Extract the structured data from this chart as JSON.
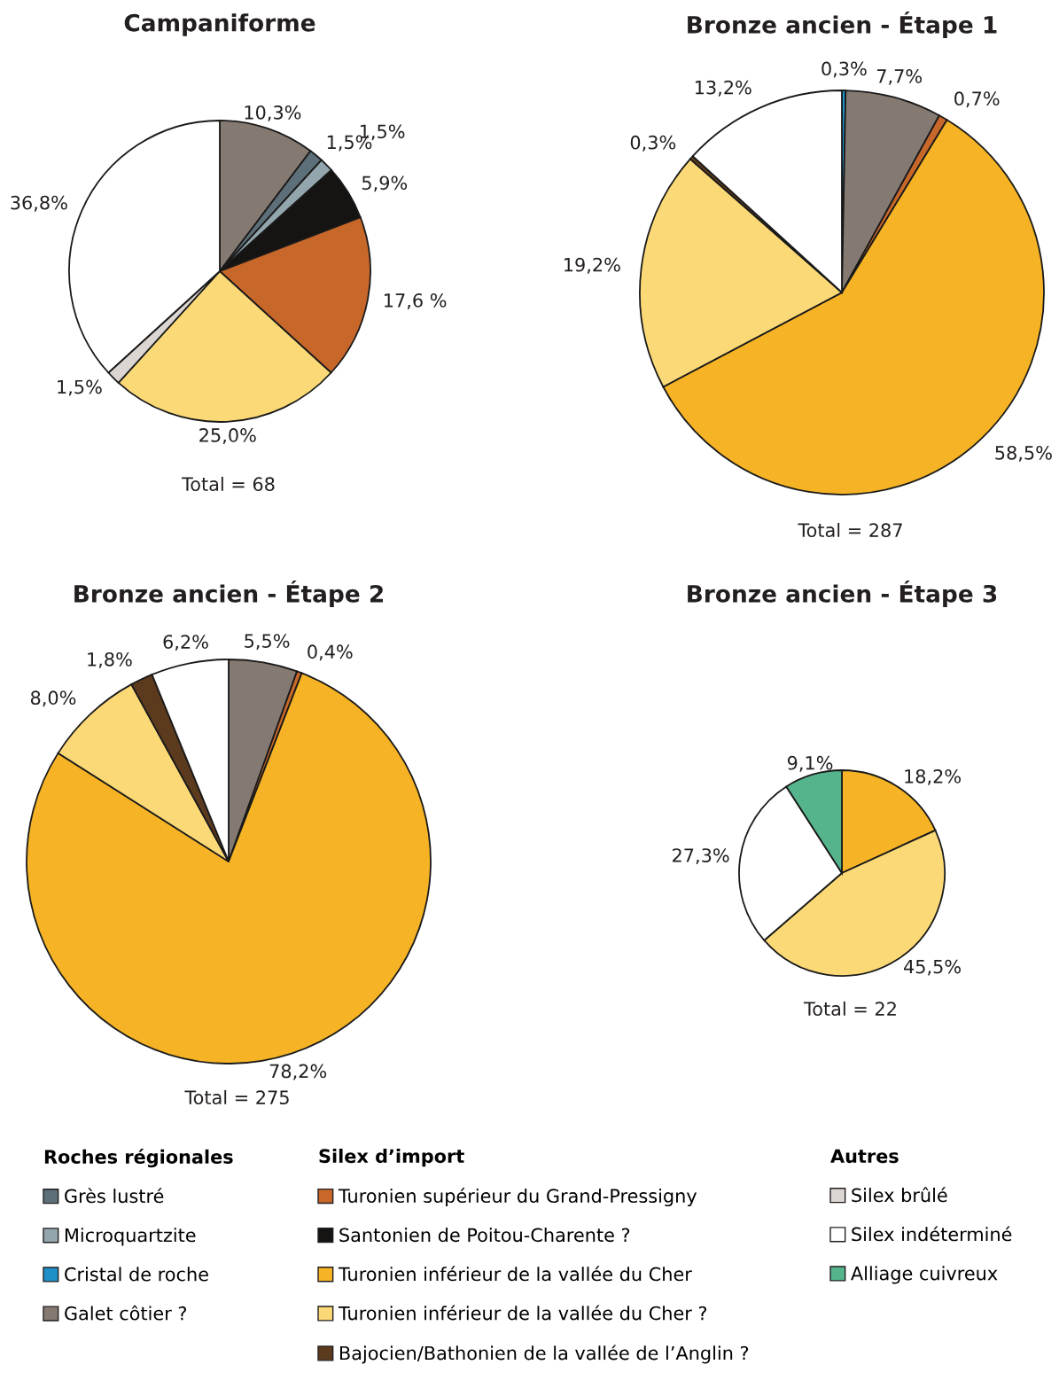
{
  "chart_data": [
    {
      "type": "pie",
      "title": "Campaniforme",
      "annotations": [
        "Total = 68"
      ],
      "values": [
        10.3,
        1.5,
        1.5,
        5.9,
        17.6,
        25.0,
        1.5,
        36.8
      ],
      "value_labels": [
        "10,3%",
        "1,5%",
        "1,5%",
        "5,9%",
        "17,6 %",
        "25,0%",
        "1,5%",
        "36,8%"
      ],
      "colors": [
        "#857a72",
        "#5d6f78",
        "#93a6ad",
        "#161412",
        "#c8672a",
        "#fbd977",
        "#dcd6d2",
        "#ffffff"
      ]
    },
    {
      "type": "pie",
      "title": "Bronze ancien - Étape 1",
      "annotations": [
        "Total = 287"
      ],
      "values": [
        0.3,
        7.7,
        0.7,
        58.5,
        19.2,
        0.3,
        13.2
      ],
      "value_labels": [
        "0,3%",
        "7,7%",
        "0,7%",
        "58,5%",
        "19,2%",
        "0,3%",
        "13,2%"
      ],
      "colors": [
        "#1e90c8",
        "#857a72",
        "#c8672a",
        "#f5b325",
        "#fbd977",
        "#5b3a1e",
        "#ffffff"
      ]
    },
    {
      "type": "pie",
      "title": "Bronze ancien - Étape 2",
      "annotations": [
        "Total = 275"
      ],
      "values": [
        5.5,
        0.4,
        78.2,
        8.0,
        1.8,
        6.2
      ],
      "value_labels": [
        "5,5%",
        "0,4%",
        "78,2%",
        "8,0%",
        "1,8%",
        "6,2%"
      ],
      "colors": [
        "#857a72",
        "#c8672a",
        "#f5b325",
        "#fbd977",
        "#5b3a1e",
        "#ffffff"
      ]
    },
    {
      "type": "pie",
      "title": "Bronze ancien - Étape 3",
      "annotations": [
        "Total = 22"
      ],
      "values": [
        18.2,
        45.5,
        27.3,
        9.1
      ],
      "value_labels": [
        "18,2%",
        "45,5%",
        "27,3%",
        "9,1%"
      ],
      "colors": [
        "#f5b325",
        "#fbd977",
        "#ffffff",
        "#55b48c"
      ]
    },
    {
      "type": "other",
      "annotations": [
        "Roches régionales",
        "Silex d’import",
        "Autres"
      ],
      "categories": [
        "Grès lustré",
        "Microquartzite",
        "Cristal de roche",
        "Galet côtier ?",
        "Turonien supérieur du Grand-Pressigny",
        "Santonien de Poitou-Charente ?",
        "Turonien inférieur de la vallée du Cher",
        "Turonien inférieur de la vallée du Cher ?",
        "Bajocien/Bathonien de la vallée de l’Anglin ?",
        "Silex brûlé",
        "Silex indéterminé",
        "Alliage cuivreux"
      ],
      "colors": [
        "#5d6f78",
        "#93a6ad",
        "#1e90c8",
        "#857a72",
        "#c8672a",
        "#161412",
        "#f5b325",
        "#fbd977",
        "#5b3a1e",
        "#dcd6d2",
        "#ffffff",
        "#55b48c"
      ]
    }
  ]
}
